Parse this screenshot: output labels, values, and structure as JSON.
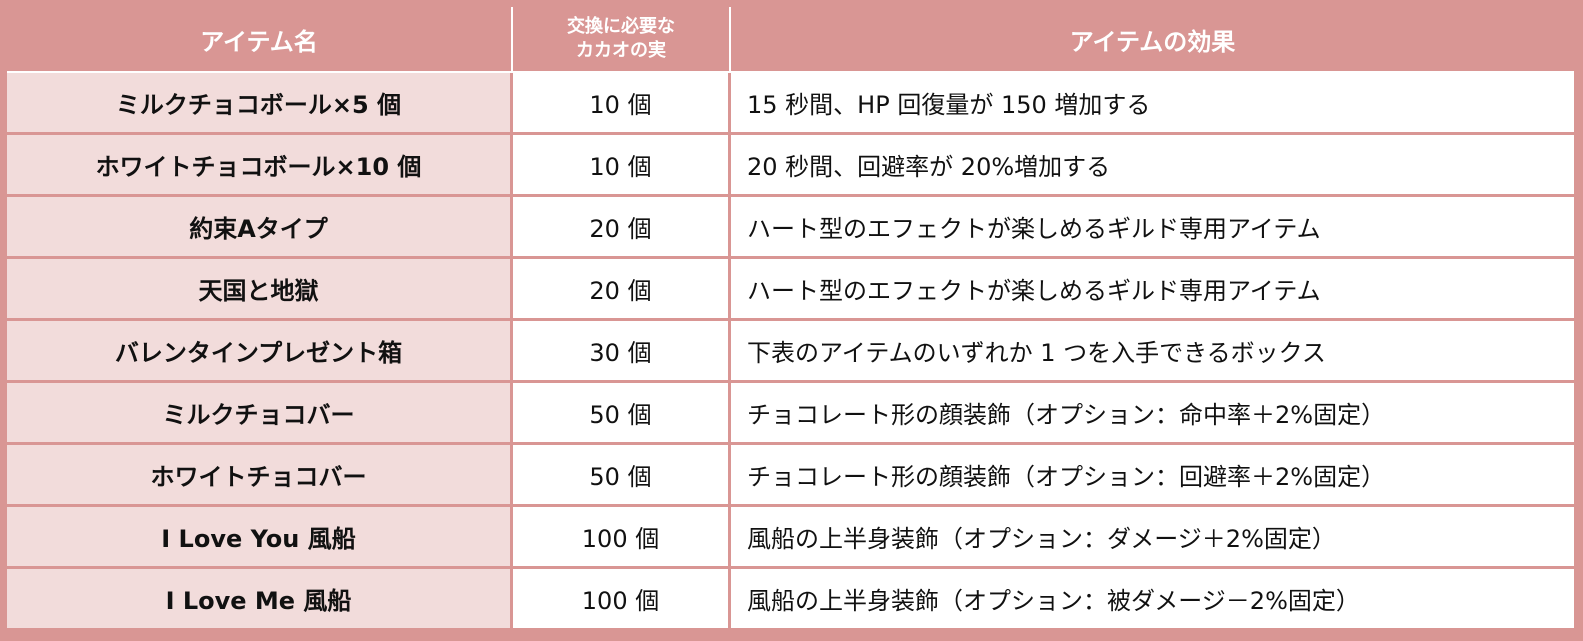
{
  "table": {
    "headers": {
      "item": "アイテム名",
      "cost_line1": "交換に必要な",
      "cost_line2": "カカオの実",
      "effect": "アイテムの効果"
    },
    "rows": [
      {
        "name": "ミルクチョコボール×5 個",
        "cost": "10 個",
        "effect": "15 秒間、HP 回復量が 150 増加する"
      },
      {
        "name": "ホワイトチョコボール×10 個",
        "cost": "10 個",
        "effect": "20 秒間、回避率が 20%増加する"
      },
      {
        "name": "約束Aタイプ",
        "cost": "20 個",
        "effect": "ハート型のエフェクトが楽しめるギルド専用アイテム"
      },
      {
        "name": "天国と地獄",
        "cost": "20 個",
        "effect": "ハート型のエフェクトが楽しめるギルド専用アイテム"
      },
      {
        "name": "バレンタインプレゼント箱",
        "cost": "30 個",
        "effect": "下表のアイテムのいずれか 1 つを入手できるボックス"
      },
      {
        "name": "ミルクチョコバー",
        "cost": "50 個",
        "effect": "チョコレート形の顔装飾（オプション：命中率＋2%固定）"
      },
      {
        "name": "ホワイトチョコバー",
        "cost": "50 個",
        "effect": "チョコレート形の顔装飾（オプション：回避率＋2%固定）"
      },
      {
        "name": "I Love You 風船",
        "cost": "100 個",
        "effect": "風船の上半身装飾（オプション：ダメージ＋2%固定）"
      },
      {
        "name": "I Love Me 風船",
        "cost": "100 個",
        "effect": "風船の上半身装飾（オプション：被ダメージ－2%固定）"
      }
    ]
  },
  "colors": {
    "header_bg": "#d99694",
    "name_cell_bg": "#f2dcdb",
    "border": "#d99694"
  }
}
